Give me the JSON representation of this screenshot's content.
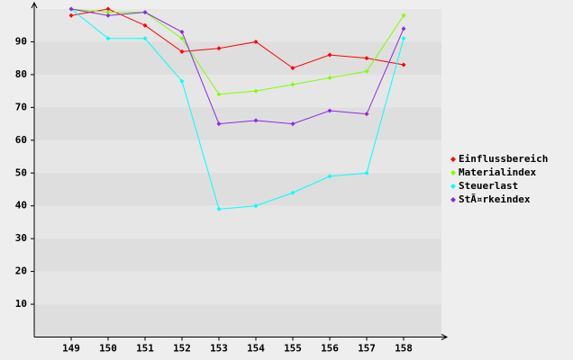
{
  "chart_data": {
    "type": "line",
    "categories": [
      "149",
      "150",
      "151",
      "152",
      "153",
      "154",
      "155",
      "156",
      "157",
      "158"
    ],
    "series": [
      {
        "name": "Einflussbereich",
        "color": "#ff0000",
        "values": [
          98,
          100,
          95,
          87,
          88,
          90,
          82,
          86,
          85,
          83
        ]
      },
      {
        "name": "Materialindex",
        "color": "#7fff00",
        "values": [
          100,
          99,
          99,
          91,
          74,
          75,
          77,
          79,
          81,
          98
        ]
      },
      {
        "name": "Steuerlast",
        "color": "#00ffff",
        "values": [
          100,
          91,
          91,
          78,
          39,
          40,
          44,
          49,
          50,
          91
        ]
      },
      {
        "name": "StÃ¤rkeindex",
        "color": "#8a2be2",
        "values": [
          100,
          98,
          99,
          93,
          65,
          66,
          65,
          69,
          68,
          94
        ]
      }
    ],
    "ylim": [
      0,
      100
    ],
    "yticks": [
      10,
      20,
      30,
      40,
      50,
      60,
      70,
      80,
      90
    ],
    "grid": true,
    "legend": "right"
  }
}
